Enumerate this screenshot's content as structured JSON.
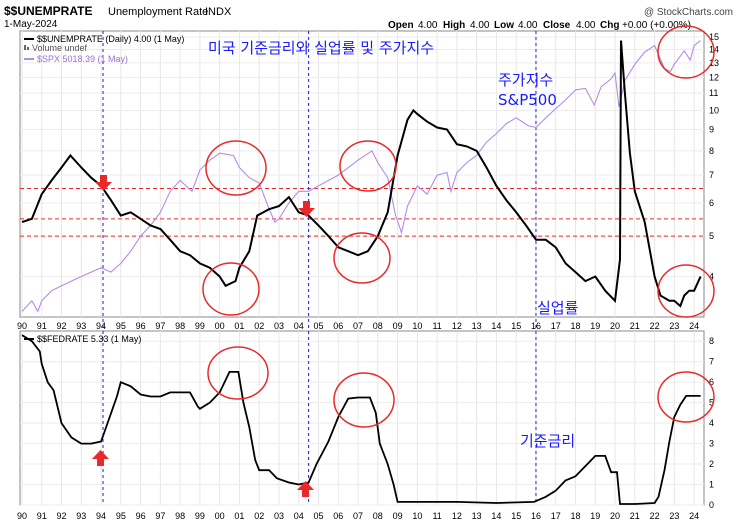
{
  "header": {
    "symbol": "$$UNEMPRATE",
    "name": "Unemployment Rate",
    "exchange": "INDX",
    "date": "1-May-2024",
    "watermark": "@ StockCharts.com",
    "quote": {
      "open_label": "Open",
      "open": "4.00",
      "high_label": "High",
      "high": "4.00",
      "low_label": "Low",
      "low": "4.00",
      "close_label": "Close",
      "close": "4.00",
      "chg_label": "Chg",
      "chg": "+0.00 (+0.00%)"
    }
  },
  "legend": {
    "unemp": "$$UNEMPRATE (Daily) 4.00 (1 May)",
    "volume": "Volume undef",
    "spx": "$SPX 5018.39 (1 May)",
    "fedrate": "$$FEDRATE 5.33 (1 May)"
  },
  "annotations": {
    "title": "미국 기준금리와 실업률 및 주가지수",
    "spx_label_1": "주가지수",
    "spx_label_2": "S&P500",
    "unemp_label": "실업률",
    "fed_label": "기준금리"
  },
  "colors": {
    "unemp": "#000000",
    "spx": "#b48ce6",
    "fed": "#000000",
    "annot_text": "#1a1aff",
    "circle": "#e8292a",
    "guide": "#1a1aff",
    "hline": "#e8292a",
    "arrow": "#e8292a"
  },
  "chart_data": [
    {
      "type": "line",
      "x_axis": {
        "years": [
          1990,
          1991,
          1992,
          1993,
          1994,
          1995,
          1996,
          1997,
          1998,
          1999,
          2000,
          2001,
          2002,
          2003,
          2004,
          2005,
          2006,
          2007,
          2008,
          2009,
          2010,
          2011,
          2012,
          2013,
          2014,
          2015,
          2016,
          2017,
          2018,
          2019,
          2020,
          2021,
          2022,
          2023,
          2024
        ],
        "tick_labels": [
          "90",
          "91",
          "92",
          "93",
          "94",
          "95",
          "96",
          "97",
          "98",
          "99",
          "00",
          "01",
          "02",
          "03",
          "04",
          "05",
          "06",
          "07",
          "08",
          "09",
          "10",
          "11",
          "12",
          "13",
          "14",
          "15",
          "16",
          "17",
          "18",
          "19",
          "20",
          "21",
          "22",
          "23",
          "24"
        ]
      },
      "y_axis_right": {
        "ticks": [
          4,
          5,
          6,
          7,
          8,
          9,
          10,
          11,
          12,
          13,
          14,
          15
        ],
        "scale": "log",
        "range": [
          3.2,
          15.5
        ]
      },
      "series": [
        {
          "name": "$$UNEMPRATE",
          "axis": "right",
          "points": [
            [
              1990.0,
              5.4
            ],
            [
              1990.5,
              5.5
            ],
            [
              1991.0,
              6.3
            ],
            [
              1991.5,
              6.8
            ],
            [
              1992.0,
              7.3
            ],
            [
              1992.45,
              7.8
            ],
            [
              1993.0,
              7.3
            ],
            [
              1993.5,
              6.9
            ],
            [
              1994.0,
              6.6
            ],
            [
              1994.5,
              6.1
            ],
            [
              1995.0,
              5.6
            ],
            [
              1995.5,
              5.7
            ],
            [
              1996.0,
              5.5
            ],
            [
              1996.5,
              5.3
            ],
            [
              1997.0,
              5.2
            ],
            [
              1997.5,
              4.9
            ],
            [
              1998.0,
              4.6
            ],
            [
              1998.5,
              4.5
            ],
            [
              1999.0,
              4.3
            ],
            [
              1999.5,
              4.2
            ],
            [
              2000.0,
              4.0
            ],
            [
              2000.3,
              3.8
            ],
            [
              2000.8,
              3.9
            ],
            [
              2001.0,
              4.2
            ],
            [
              2001.5,
              4.6
            ],
            [
              2001.9,
              5.6
            ],
            [
              2002.5,
              5.8
            ],
            [
              2003.0,
              5.9
            ],
            [
              2003.5,
              6.2
            ],
            [
              2004.0,
              5.7
            ],
            [
              2004.5,
              5.6
            ],
            [
              2005.0,
              5.3
            ],
            [
              2005.5,
              5.0
            ],
            [
              2006.0,
              4.7
            ],
            [
              2006.5,
              4.6
            ],
            [
              2007.0,
              4.5
            ],
            [
              2007.5,
              4.6
            ],
            [
              2008.0,
              5.0
            ],
            [
              2008.5,
              5.7
            ],
            [
              2009.0,
              7.8
            ],
            [
              2009.5,
              9.5
            ],
            [
              2009.8,
              10.0
            ],
            [
              2010.0,
              9.8
            ],
            [
              2010.5,
              9.4
            ],
            [
              2011.0,
              9.1
            ],
            [
              2011.5,
              9.0
            ],
            [
              2012.0,
              8.3
            ],
            [
              2012.5,
              8.2
            ],
            [
              2013.0,
              8.0
            ],
            [
              2013.5,
              7.3
            ],
            [
              2014.0,
              6.6
            ],
            [
              2014.5,
              6.1
            ],
            [
              2015.0,
              5.7
            ],
            [
              2015.5,
              5.3
            ],
            [
              2016.0,
              4.9
            ],
            [
              2016.5,
              4.9
            ],
            [
              2017.0,
              4.7
            ],
            [
              2017.5,
              4.3
            ],
            [
              2018.0,
              4.1
            ],
            [
              2018.5,
              3.9
            ],
            [
              2019.0,
              4.0
            ],
            [
              2019.5,
              3.7
            ],
            [
              2020.0,
              3.5
            ],
            [
              2020.25,
              4.4
            ],
            [
              2020.3,
              14.7
            ],
            [
              2020.5,
              11.0
            ],
            [
              2020.75,
              7.9
            ],
            [
              2021.0,
              6.4
            ],
            [
              2021.5,
              5.4
            ],
            [
              2022.0,
              4.0
            ],
            [
              2022.3,
              3.6
            ],
            [
              2022.75,
              3.5
            ],
            [
              2023.0,
              3.5
            ],
            [
              2023.3,
              3.4
            ],
            [
              2023.5,
              3.6
            ],
            [
              2023.75,
              3.7
            ],
            [
              2024.0,
              3.7
            ],
            [
              2024.33,
              4.0
            ]
          ]
        },
        {
          "name": "$SPX",
          "axis": "right",
          "points": [
            [
              1990.0,
              3.3
            ],
            [
              1990.5,
              3.5
            ],
            [
              1990.8,
              3.3
            ],
            [
              1991.0,
              3.5
            ],
            [
              1991.5,
              3.7
            ],
            [
              1992.0,
              3.8
            ],
            [
              1993.0,
              4.0
            ],
            [
              1994.0,
              4.2
            ],
            [
              1994.5,
              4.1
            ],
            [
              1995.0,
              4.3
            ],
            [
              1995.5,
              4.6
            ],
            [
              1996.0,
              5.0
            ],
            [
              1996.5,
              5.3
            ],
            [
              1997.0,
              5.7
            ],
            [
              1997.5,
              6.4
            ],
            [
              1998.0,
              6.8
            ],
            [
              1998.6,
              6.4
            ],
            [
              1999.0,
              7.2
            ],
            [
              1999.5,
              7.6
            ],
            [
              2000.0,
              7.9
            ],
            [
              2000.7,
              7.8
            ],
            [
              2001.0,
              7.3
            ],
            [
              2001.5,
              6.9
            ],
            [
              2002.0,
              6.7
            ],
            [
              2002.5,
              5.8
            ],
            [
              2002.8,
              5.4
            ],
            [
              2003.0,
              5.5
            ],
            [
              2003.5,
              6.0
            ],
            [
              2004.0,
              6.4
            ],
            [
              2004.5,
              6.4
            ],
            [
              2005.0,
              6.6
            ],
            [
              2006.0,
              7.0
            ],
            [
              2007.0,
              7.6
            ],
            [
              2007.7,
              8.0
            ],
            [
              2008.0,
              7.5
            ],
            [
              2008.5,
              6.9
            ],
            [
              2008.9,
              5.6
            ],
            [
              2009.2,
              5.1
            ],
            [
              2009.5,
              5.9
            ],
            [
              2010.0,
              6.6
            ],
            [
              2010.5,
              6.3
            ],
            [
              2011.0,
              7.0
            ],
            [
              2011.5,
              7.1
            ],
            [
              2011.7,
              6.4
            ],
            [
              2012.0,
              7.1
            ],
            [
              2012.5,
              7.5
            ],
            [
              2013.0,
              7.8
            ],
            [
              2013.5,
              8.4
            ],
            [
              2014.0,
              8.8
            ],
            [
              2014.5,
              9.3
            ],
            [
              2015.0,
              9.6
            ],
            [
              2015.6,
              9.2
            ],
            [
              2016.0,
              9.1
            ],
            [
              2016.5,
              9.6
            ],
            [
              2017.0,
              10.1
            ],
            [
              2017.5,
              10.6
            ],
            [
              2018.0,
              11.2
            ],
            [
              2018.5,
              11.3
            ],
            [
              2018.95,
              10.3
            ],
            [
              2019.3,
              11.4
            ],
            [
              2019.8,
              11.9
            ],
            [
              2020.0,
              12.3
            ],
            [
              2020.2,
              10.2
            ],
            [
              2020.5,
              11.8
            ],
            [
              2021.0,
              12.9
            ],
            [
              2021.5,
              13.8
            ],
            [
              2022.0,
              14.3
            ],
            [
              2022.5,
              12.6
            ],
            [
              2022.8,
              12.4
            ],
            [
              2023.0,
              12.9
            ],
            [
              2023.5,
              13.9
            ],
            [
              2023.8,
              13.2
            ],
            [
              2024.0,
              14.3
            ],
            [
              2024.33,
              14.7
            ]
          ]
        }
      ],
      "reference_lines": [
        6.5,
        5.5,
        5.0
      ],
      "vertical_guides": [
        1994.1,
        2004.5,
        2016.0
      ]
    },
    {
      "type": "line",
      "y_axis_right": {
        "ticks": [
          0,
          1,
          2,
          3,
          4,
          5,
          6,
          7,
          8
        ],
        "range": [
          0,
          8.5
        ]
      },
      "series": [
        {
          "name": "$$FEDRATE",
          "axis": "right",
          "points": [
            [
              1990.0,
              8.3
            ],
            [
              1990.5,
              8.0
            ],
            [
              1990.9,
              7.5
            ],
            [
              1991.0,
              6.9
            ],
            [
              1991.3,
              6.0
            ],
            [
              1991.6,
              5.6
            ],
            [
              1992.0,
              4.0
            ],
            [
              1992.5,
              3.3
            ],
            [
              1993.0,
              3.0
            ],
            [
              1993.5,
              3.0
            ],
            [
              1994.0,
              3.1
            ],
            [
              1994.4,
              4.2
            ],
            [
              1994.8,
              5.3
            ],
            [
              1995.0,
              6.0
            ],
            [
              1995.5,
              5.8
            ],
            [
              1996.0,
              5.4
            ],
            [
              1996.5,
              5.3
            ],
            [
              1997.0,
              5.3
            ],
            [
              1997.5,
              5.5
            ],
            [
              1998.0,
              5.5
            ],
            [
              1998.5,
              5.5
            ],
            [
              1998.9,
              4.8
            ],
            [
              1999.0,
              4.7
            ],
            [
              1999.5,
              5.0
            ],
            [
              2000.0,
              5.5
            ],
            [
              2000.5,
              6.5
            ],
            [
              2000.95,
              6.5
            ],
            [
              2001.2,
              5.0
            ],
            [
              2001.5,
              3.8
            ],
            [
              2001.8,
              2.2
            ],
            [
              2002.0,
              1.7
            ],
            [
              2002.5,
              1.7
            ],
            [
              2002.9,
              1.3
            ],
            [
              2003.5,
              1.1
            ],
            [
              2004.0,
              1.0
            ],
            [
              2004.5,
              1.1
            ],
            [
              2004.9,
              2.0
            ],
            [
              2005.5,
              3.1
            ],
            [
              2006.0,
              4.3
            ],
            [
              2006.5,
              5.2
            ],
            [
              2007.0,
              5.25
            ],
            [
              2007.6,
              5.25
            ],
            [
              2007.9,
              4.5
            ],
            [
              2008.1,
              3.0
            ],
            [
              2008.5,
              2.0
            ],
            [
              2008.8,
              1.0
            ],
            [
              2009.0,
              0.15
            ],
            [
              2010.0,
              0.15
            ],
            [
              2012.0,
              0.15
            ],
            [
              2014.0,
              0.1
            ],
            [
              2015.9,
              0.15
            ],
            [
              2016.5,
              0.4
            ],
            [
              2017.0,
              0.7
            ],
            [
              2017.5,
              1.2
            ],
            [
              2018.0,
              1.4
            ],
            [
              2018.5,
              1.9
            ],
            [
              2019.0,
              2.4
            ],
            [
              2019.5,
              2.4
            ],
            [
              2019.8,
              1.6
            ],
            [
              2020.1,
              1.6
            ],
            [
              2020.25,
              0.05
            ],
            [
              2021.0,
              0.05
            ],
            [
              2022.0,
              0.1
            ],
            [
              2022.2,
              0.4
            ],
            [
              2022.5,
              1.7
            ],
            [
              2022.75,
              3.1
            ],
            [
              2023.0,
              4.3
            ],
            [
              2023.3,
              4.9
            ],
            [
              2023.6,
              5.33
            ],
            [
              2024.0,
              5.33
            ],
            [
              2024.33,
              5.33
            ]
          ]
        }
      ],
      "vertical_guides": [
        1994.1,
        2004.5,
        2016.0
      ]
    }
  ]
}
